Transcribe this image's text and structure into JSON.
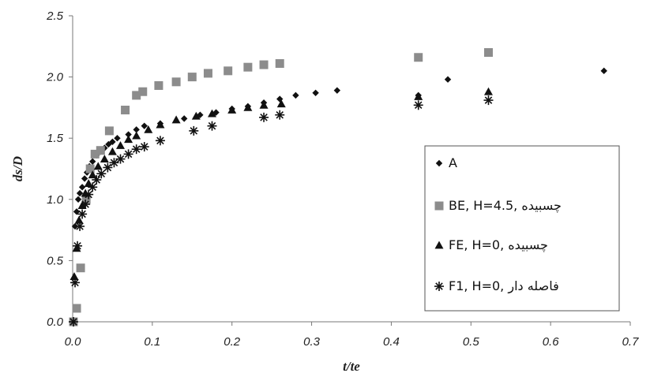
{
  "chart_data": {
    "type": "scatter",
    "title": "",
    "xlabel": "t/te",
    "ylabel": "ds/D",
    "xlim": [
      0,
      0.7
    ],
    "ylim": [
      0,
      2.5
    ],
    "xticks": [
      "0.0",
      "0.1",
      "0.2",
      "0.3",
      "0.4",
      "0.5",
      "0.6",
      "0.7"
    ],
    "yticks": [
      "0.0",
      "0.5",
      "1.0",
      "1.5",
      "2.0",
      "2.5"
    ],
    "grid": false,
    "legend_position": "bottom-right",
    "series": [
      {
        "name": "A",
        "marker": "diamond",
        "color": "#111111",
        "x": [
          0.001,
          0.003,
          0.005,
          0.007,
          0.009,
          0.012,
          0.015,
          0.018,
          0.021,
          0.025,
          0.03,
          0.035,
          0.04,
          0.045,
          0.05,
          0.056,
          0.07,
          0.08,
          0.09,
          0.11,
          0.14,
          0.16,
          0.18,
          0.2,
          0.22,
          0.24,
          0.26,
          0.28,
          0.305,
          0.332,
          0.434,
          0.471,
          0.667
        ],
        "y": [
          0.0,
          0.78,
          0.9,
          1.0,
          1.05,
          1.1,
          1.17,
          1.22,
          1.27,
          1.31,
          1.36,
          1.39,
          1.42,
          1.45,
          1.47,
          1.5,
          1.53,
          1.57,
          1.6,
          1.62,
          1.66,
          1.69,
          1.71,
          1.74,
          1.76,
          1.79,
          1.82,
          1.85,
          1.87,
          1.89,
          1.85,
          1.98,
          2.05
        ]
      },
      {
        "name": "BE, H=4.5, چسبیده",
        "marker": "square",
        "color": "#8c8c8c",
        "x": [
          0.001,
          0.005,
          0.01,
          0.017,
          0.022,
          0.028,
          0.035,
          0.046,
          0.066,
          0.08,
          0.088,
          0.108,
          0.13,
          0.15,
          0.17,
          0.195,
          0.22,
          0.24,
          0.26,
          0.434,
          0.522
        ],
        "y": [
          0.0,
          0.11,
          0.44,
          1.0,
          1.25,
          1.37,
          1.4,
          1.56,
          1.73,
          1.85,
          1.88,
          1.93,
          1.96,
          2.0,
          2.03,
          2.05,
          2.08,
          2.1,
          2.11,
          2.16,
          2.2
        ]
      },
      {
        "name": "FE, H=0, چسبیده",
        "marker": "triangle",
        "color": "#111111",
        "x": [
          0.002,
          0.005,
          0.008,
          0.012,
          0.016,
          0.02,
          0.025,
          0.032,
          0.04,
          0.05,
          0.06,
          0.07,
          0.08,
          0.095,
          0.11,
          0.13,
          0.155,
          0.175,
          0.2,
          0.22,
          0.24,
          0.262,
          0.434,
          0.522
        ],
        "y": [
          0.37,
          0.6,
          0.83,
          0.95,
          1.05,
          1.13,
          1.2,
          1.27,
          1.33,
          1.39,
          1.44,
          1.49,
          1.52,
          1.57,
          1.61,
          1.65,
          1.68,
          1.7,
          1.73,
          1.75,
          1.77,
          1.78,
          1.84,
          1.88
        ]
      },
      {
        "name": "F1, H=0, فاصله دار",
        "marker": "asterisk",
        "color": "#111111",
        "x": [
          0.001,
          0.003,
          0.006,
          0.009,
          0.012,
          0.016,
          0.02,
          0.025,
          0.03,
          0.036,
          0.044,
          0.052,
          0.06,
          0.07,
          0.08,
          0.09,
          0.11,
          0.152,
          0.175,
          0.24,
          0.26,
          0.434,
          0.522
        ],
        "y": [
          0.0,
          0.32,
          0.62,
          0.78,
          0.88,
          0.96,
          1.04,
          1.1,
          1.16,
          1.21,
          1.26,
          1.3,
          1.33,
          1.37,
          1.41,
          1.43,
          1.48,
          1.56,
          1.6,
          1.67,
          1.69,
          1.77,
          1.81
        ]
      }
    ]
  }
}
